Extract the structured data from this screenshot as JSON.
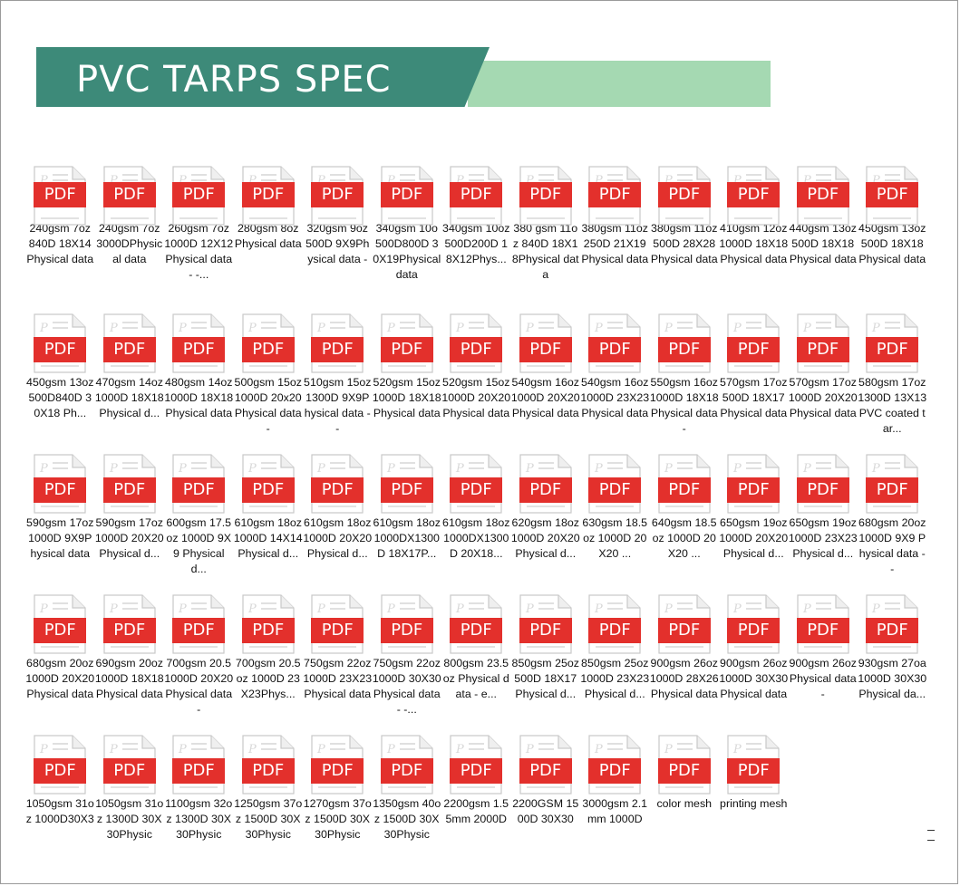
{
  "header": {
    "title": "PVC TARPS SPEC",
    "colors": {
      "dark": "#3d8a79",
      "light": "#a5d9b2"
    }
  },
  "file_icon": {
    "badge_text": "PDF",
    "badge_color": "#e3302c",
    "icon": "pdf-file-icon"
  },
  "files": [
    {
      "label": "240gsm 7oz 840D 18X14 Physical data"
    },
    {
      "label": "240gsm 7oz 3000DPhysical data"
    },
    {
      "label": "260gsm 7oz 1000D 12X12Physical data - -..."
    },
    {
      "label": "280gsm 8oz Physical data"
    },
    {
      "label": "320gsm 9oz 500D 9X9Physical data -"
    },
    {
      "label": "340gsm 10o 500D800D 30X19Physical data"
    },
    {
      "label": "340gsm 10oz 500D200D 18X12Phys..."
    },
    {
      "label": "380 gsm 11oz 840D 18X18Physical data"
    },
    {
      "label": "380gsm 11oz 250D 21X19Physical data"
    },
    {
      "label": "380gsm 11oz 500D 28X28Physical data"
    },
    {
      "label": "410gsm 12oz 1000D 18X18Physical data"
    },
    {
      "label": "440gsm 13oz 500D 18X18Physical data"
    },
    {
      "label": "450gsm 13oz 500D 18X18Physical data"
    },
    {
      "label": "450gsm 13oz 500D840D 30X18 Ph..."
    },
    {
      "label": "470gsm 14oz 1000D 18X18 Physical d..."
    },
    {
      "label": "480gsm 14oz 1000D 18X18Physical data"
    },
    {
      "label": "500gsm 15oz 1000D 20x20Physical data -"
    },
    {
      "label": "510gsm 15oz 1300D 9X9Physical data - -"
    },
    {
      "label": "520gsm 15oz 1000D 18X18Physical data"
    },
    {
      "label": "520gsm 15oz 1000D 20X20Physical data"
    },
    {
      "label": "540gsm 16oz 1000D 20X20Physical data"
    },
    {
      "label": "540gsm 16oz 1000D 23X23Physical data"
    },
    {
      "label": "550gsm 16oz 1000D 18X18Physical data -"
    },
    {
      "label": "570gsm 17oz 500D 18X17Physical data"
    },
    {
      "label": "570gsm 17oz 1000D 20X20Physical data"
    },
    {
      "label": "580gsm 17oz 1300D 13X13 PVC coated tar..."
    },
    {
      "label": "590gsm 17oz 1000D 9X9Physical data"
    },
    {
      "label": "590gsm 17oz 1000D 20X20 Physical d..."
    },
    {
      "label": "600gsm 17.5oz 1000D 9X9 Physical d..."
    },
    {
      "label": "610gsm 18oz 1000D 14X14 Physical d..."
    },
    {
      "label": "610gsm 18oz 1000D 20X20 Physical d..."
    },
    {
      "label": "610gsm 18oz 1000DX1300D 18X17P..."
    },
    {
      "label": "610gsm 18oz 1000DX1300D 20X18..."
    },
    {
      "label": "620gsm 18oz 1000D 20X20 Physical d..."
    },
    {
      "label": "630gsm 18.5oz 1000D 20X20 ..."
    },
    {
      "label": "640gsm 18.5oz 1000D 20X20 ..."
    },
    {
      "label": "650gsm 19oz 1000D 20X20 Physical d..."
    },
    {
      "label": "650gsm 19oz 1000D 23X23 Physical d..."
    },
    {
      "label": "680gsm 20oz 1000D 9X9 Physical data - -"
    },
    {
      "label": "680gsm 20oz 1000D 20X20Physical data"
    },
    {
      "label": "690gsm 20oz 1000D 18X18Physical data"
    },
    {
      "label": "700gsm 20.5 1000D 20X20Physical data -"
    },
    {
      "label": "700gsm 20.5oz 1000D 23X23Phys..."
    },
    {
      "label": "750gsm 22oz 1000D 23X23Physical data"
    },
    {
      "label": "750gsm 22oz 1000D 30X30Physical data - -..."
    },
    {
      "label": "800gsm 23.5oz Physical data - e..."
    },
    {
      "label": "850gsm 25oz 500D 18X17 Physical d..."
    },
    {
      "label": "850gsm 25oz 1000D 23X23 Physical d..."
    },
    {
      "label": "900gsm 26oz 1000D 28X26Physical data"
    },
    {
      "label": "900gsm 26oz 1000D 30X30Physical data"
    },
    {
      "label": "900gsm 26oz Physical data -"
    },
    {
      "label": "930gsm 27oa 1000D 30X30 Physical da..."
    },
    {
      "label": "1050gsm 31oz 1000D30X3"
    },
    {
      "label": "1050gsm 31oz 1300D 30X30Physic"
    },
    {
      "label": "1100gsm 32oz 1300D 30X30Physic"
    },
    {
      "label": "1250gsm 37oz 1500D 30X30Physic"
    },
    {
      "label": "1270gsm 37oz 1500D 30X30Physic"
    },
    {
      "label": "1350gsm 40oz 1500D 30X30Physic"
    },
    {
      "label": "2200gsm 1.55mm 2000D"
    },
    {
      "label": "2200GSM 1500D 30X30"
    },
    {
      "label": "3000gsm 2.1mm 1000D"
    },
    {
      "label": "color mesh"
    },
    {
      "label": "printing mesh"
    }
  ]
}
